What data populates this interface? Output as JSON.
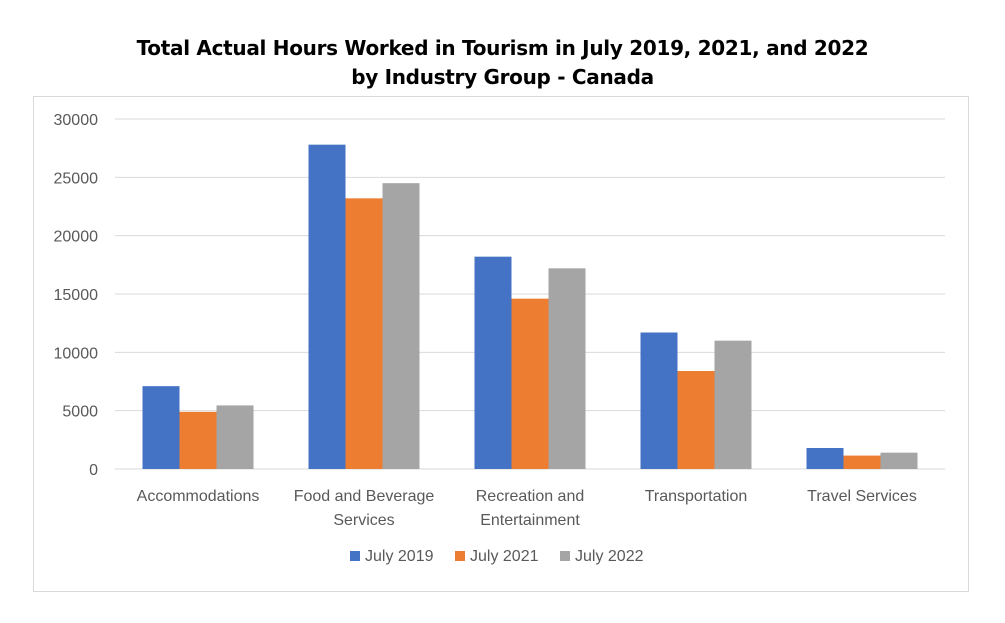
{
  "chart_data": {
    "type": "bar",
    "title_lines": [
      "Total Actual Hours Worked in Tourism in July 2019, 2021, and 2022",
      "by Industry Group - Canada"
    ],
    "categories": [
      [
        "Accommodations"
      ],
      [
        "Food and Beverage",
        "Services"
      ],
      [
        "Recreation and",
        "Entertainment"
      ],
      [
        "Transportation"
      ],
      [
        "Travel Services"
      ]
    ],
    "series": [
      {
        "name": "July 2019",
        "color": "#4472c4",
        "values": [
          7100,
          27800,
          18200,
          11700,
          1800
        ]
      },
      {
        "name": "July 2021",
        "color": "#ed7d31",
        "values": [
          4900,
          23200,
          14600,
          8400,
          1150
        ]
      },
      {
        "name": "July 2022",
        "color": "#a5a5a5",
        "values": [
          5450,
          24500,
          17200,
          11000,
          1400
        ]
      }
    ],
    "ylim": [
      0,
      30000
    ],
    "yticks": [
      "0",
      "5000",
      "10000",
      "15000",
      "20000",
      "25000",
      "30000"
    ],
    "grid": true,
    "legend_position": "bottom",
    "xlabel": "",
    "ylabel": ""
  }
}
